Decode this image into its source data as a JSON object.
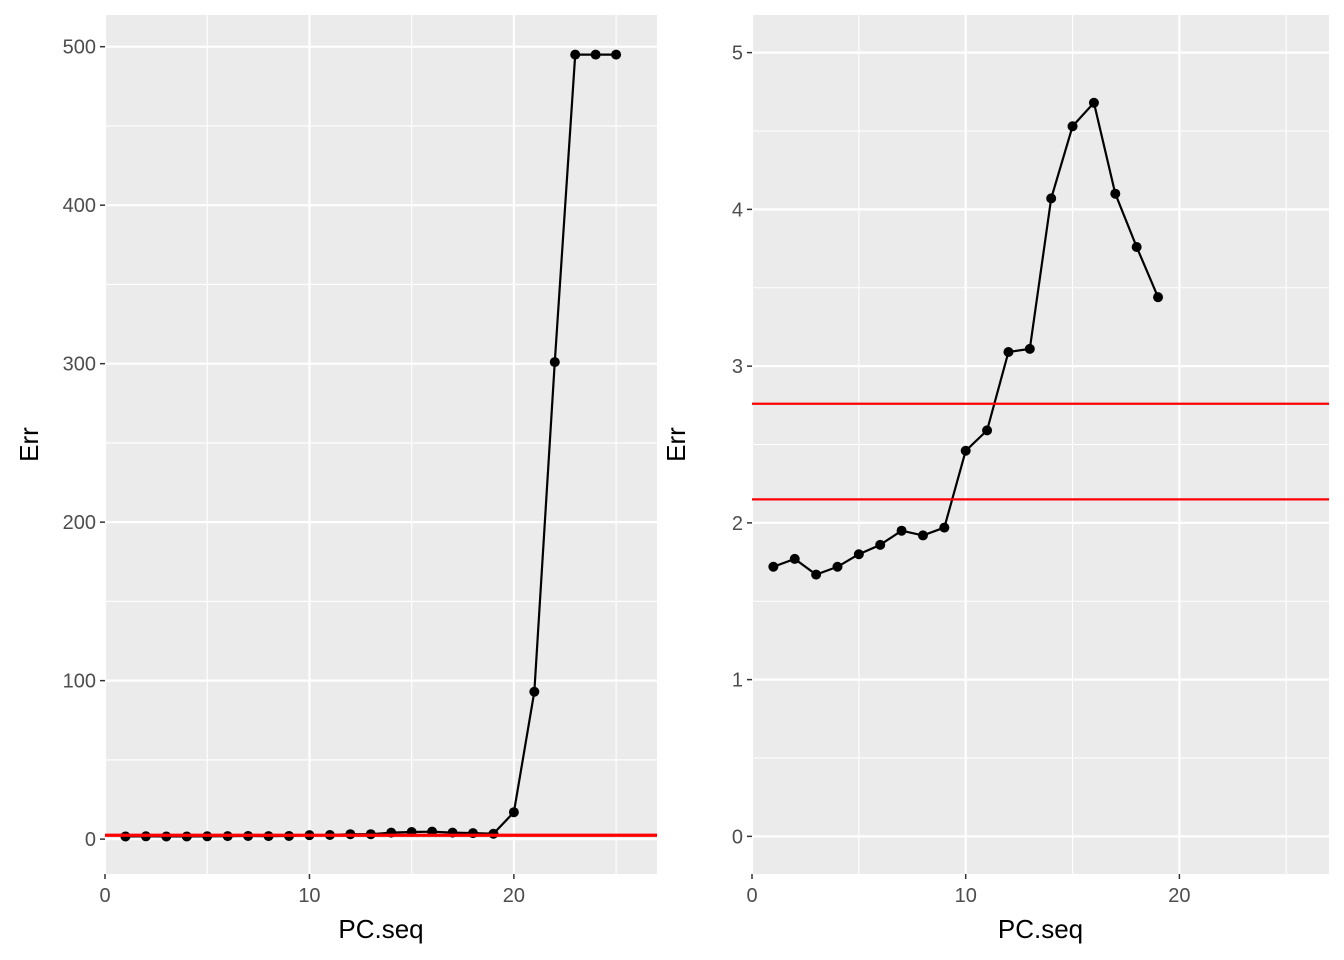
{
  "chart_data": [
    {
      "type": "line",
      "xlabel": "PC.seq",
      "ylabel": "Err",
      "xlim": [
        0,
        27
      ],
      "ylim": [
        -22,
        520
      ],
      "x_ticks": [
        0,
        10,
        20
      ],
      "y_ticks": [
        0,
        100,
        200,
        300,
        400,
        500
      ],
      "x_minor_ticks": [
        5,
        15,
        25
      ],
      "y_minor_ticks": [
        50,
        150,
        250,
        350,
        450
      ],
      "grid": true,
      "background": "#ebebeb",
      "series": [
        {
          "x": [
            1,
            2,
            3,
            4,
            5,
            6,
            7,
            8,
            9,
            10,
            11,
            12,
            13,
            14,
            15,
            16,
            17,
            18,
            19,
            20,
            21,
            22,
            23,
            24,
            25
          ],
          "y": [
            1.7,
            1.8,
            1.7,
            1.7,
            1.8,
            1.9,
            2.0,
            1.9,
            2.0,
            2.5,
            2.6,
            3.1,
            3.1,
            4.1,
            4.5,
            4.7,
            4.1,
            3.8,
            3.4,
            17,
            93,
            301,
            495,
            495,
            495
          ],
          "color": "#000000"
        }
      ],
      "hlines": [
        {
          "y": 2.75,
          "color": "#ff0000"
        },
        {
          "y": 2.15,
          "color": "#ff0000"
        }
      ]
    },
    {
      "type": "line",
      "xlabel": "PC.seq",
      "ylabel": "Err",
      "xlim": [
        0,
        27
      ],
      "ylim": [
        -0.24,
        5.24
      ],
      "x_ticks": [
        0,
        10,
        20
      ],
      "y_ticks": [
        0,
        1,
        2,
        3,
        4,
        5
      ],
      "x_minor_ticks": [
        5,
        15,
        25
      ],
      "y_minor_ticks": [
        0.5,
        1.5,
        2.5,
        3.5,
        4.5
      ],
      "grid": true,
      "background": "#ebebeb",
      "series": [
        {
          "x": [
            1,
            2,
            3,
            4,
            5,
            6,
            7,
            8,
            9,
            10,
            11,
            12,
            13,
            14,
            15,
            16,
            17,
            18,
            19
          ],
          "y": [
            1.72,
            1.77,
            1.67,
            1.72,
            1.8,
            1.86,
            1.95,
            1.92,
            1.97,
            2.46,
            2.59,
            3.09,
            3.11,
            4.07,
            4.53,
            4.68,
            4.1,
            3.76,
            3.44
          ],
          "color": "#000000"
        }
      ],
      "hlines": [
        {
          "y": 2.76,
          "color": "#ff0000"
        },
        {
          "y": 2.15,
          "color": "#ff0000"
        }
      ]
    }
  ]
}
